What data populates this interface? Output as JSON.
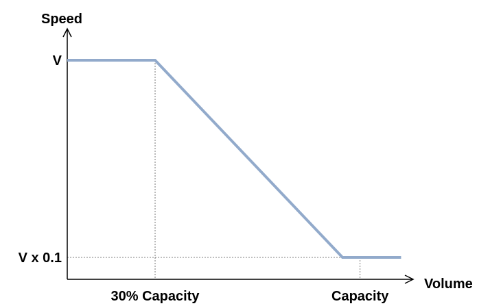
{
  "chart_data": {
    "type": "line",
    "title": "",
    "xlabel": "Volume",
    "ylabel": "Speed",
    "x": [
      0,
      0.3,
      0.94,
      1.14
    ],
    "series": [
      {
        "values": [
          1.0,
          1.0,
          0.1,
          0.1
        ]
      }
    ],
    "x_ticks": [
      {
        "value": 0.3,
        "label": "30% Capacity"
      },
      {
        "value": 1.0,
        "label": "Capacity"
      }
    ],
    "y_ticks": [
      {
        "value": 1.0,
        "label": "V"
      },
      {
        "value": 0.1,
        "label": "V x 0.1"
      }
    ],
    "xlim": [
      0,
      1.14
    ],
    "ylim": [
      0,
      1.0
    ],
    "grid": false,
    "colors": {
      "line": "#92AACB",
      "axis": "#000000",
      "guide": "#555555"
    }
  }
}
